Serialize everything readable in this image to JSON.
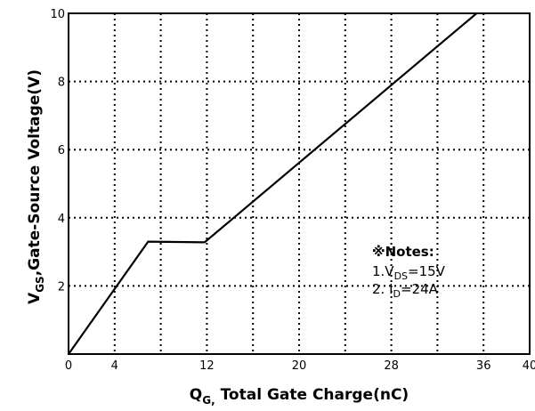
{
  "chart_data": {
    "type": "line",
    "xlabel": {
      "main": "Q",
      "sub": "G,",
      "rest": " Total Gate Charge(nC)"
    },
    "ylabel": {
      "main": "V",
      "sub": "GS",
      "rest": ",Gate-Source Voltage(V)"
    },
    "xlim": [
      0,
      40
    ],
    "ylim": [
      0,
      10
    ],
    "x_ticks": [
      0,
      4,
      12,
      20,
      28,
      36,
      40
    ],
    "y_ticks": [
      2,
      4,
      6,
      8,
      10
    ],
    "x_gridlines": [
      4,
      8,
      12,
      16,
      20,
      24,
      28,
      32,
      36
    ],
    "y_gridlines": [
      2,
      4,
      6,
      8
    ],
    "grid": true,
    "series": [
      {
        "x": [
          0,
          6.9,
          11.8,
          35.4
        ],
        "y": [
          0,
          3.3,
          3.28,
          10.0
        ]
      }
    ],
    "annotation": {
      "title": "※Notes:",
      "line1": {
        "prefix": "1.V",
        "sub": "DS",
        "suffix": "=15V"
      },
      "line2": {
        "prefix": "2. I",
        "sub": "D",
        "suffix": "=24A"
      }
    }
  }
}
